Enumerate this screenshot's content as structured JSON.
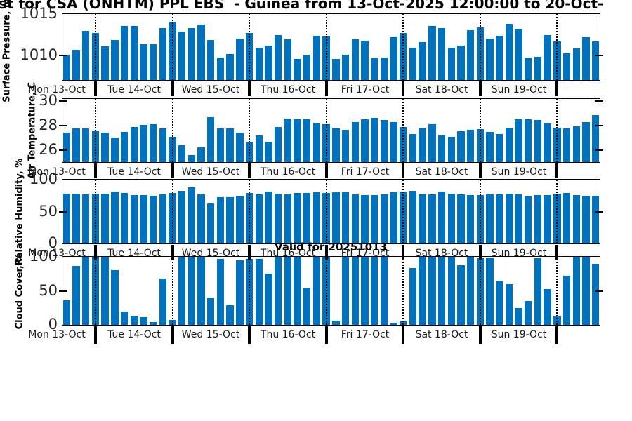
{
  "title": "st for CSA (ONHTM) PPL EBS  - Guinea from 13-Oct-2025 12:00:00 to 20-Oct-",
  "annotation": "Valid for 20251013",
  "bar_color": "#0072BD",
  "day_labels": [
    "Mon 13-Oct",
    "Tue 14-Oct",
    "Wed 15-Oct",
    "Thu 16-Oct",
    "Fri 17-Oct",
    "Sat 18-Oct",
    "Sun 19-Oct"
  ],
  "chart_data": [
    {
      "type": "bar",
      "ylabel": "Surface Pressure, mb",
      "yticks": [
        1015,
        1010
      ],
      "ylim": [
        1007.1,
        1015
      ],
      "x_tick_labels": [
        "Mon 13-Oct",
        "Tue 14-Oct",
        "Wed 15-Oct",
        "Thu 16-Oct",
        "Fri 17-Oct",
        "Sat 18-Oct",
        "Sun 19-Oct"
      ],
      "values": [
        1010.1,
        1010.7,
        1013.0,
        1012.7,
        1011.1,
        1011.9,
        1013.6,
        1013.6,
        1011.4,
        1011.4,
        1013.3,
        1014.1,
        1012.9,
        1013.3,
        1013.7,
        1011.9,
        1009.8,
        1010.2,
        1012.1,
        1012.7,
        1011.0,
        1011.2,
        1012.5,
        1012.0,
        1009.6,
        1010.1,
        1012.4,
        1012.3,
        1009.6,
        1010.1,
        1012.0,
        1011.8,
        1009.7,
        1009.8,
        1012.2,
        1012.7,
        1011.0,
        1011.6,
        1013.6,
        1013.3,
        1011.0,
        1011.2,
        1013.1,
        1013.4,
        1012.1,
        1012.4,
        1013.8,
        1013.2,
        1009.8,
        1009.9,
        1012.5,
        1011.7,
        1010.3,
        1010.9,
        1012.2,
        1011.7
      ]
    },
    {
      "type": "bar",
      "ylabel": "Air Temperature, C",
      "yticks": [
        30,
        28,
        26
      ],
      "ylim": [
        25,
        30.2
      ],
      "x_tick_labels": [
        "Mon 13-Oct",
        "Tue 14-Oct",
        "Wed 15-Oct",
        "Thu 16-Oct",
        "Fri 17-Oct",
        "Sat 18-Oct",
        "Sun 19-Oct"
      ],
      "values": [
        27.4,
        27.8,
        27.75,
        27.6,
        27.4,
        27.0,
        27.5,
        27.9,
        28.05,
        28.1,
        27.8,
        27.1,
        26.4,
        25.6,
        26.2,
        28.7,
        27.8,
        27.8,
        27.4,
        26.7,
        27.2,
        26.7,
        27.9,
        28.6,
        28.55,
        28.55,
        28.2,
        28.1,
        27.75,
        27.65,
        28.3,
        28.5,
        28.65,
        28.45,
        28.3,
        27.9,
        27.3,
        27.75,
        28.1,
        27.2,
        27.1,
        27.55,
        27.65,
        27.7,
        27.5,
        27.3,
        27.85,
        28.55,
        28.55,
        28.45,
        28.15,
        27.85,
        27.75,
        27.95,
        28.3,
        28.85
      ]
    },
    {
      "type": "bar",
      "ylabel": "Relative Humidity, %",
      "yticks": [
        100,
        50,
        0
      ],
      "ylim": [
        0,
        100
      ],
      "x_tick_labels": [
        "Mon 13-Oct",
        "Tue 14-Oct",
        "Wed 15-Oct",
        "Thu 16-Oct",
        "Fri 17-Oct",
        "Sat 18-Oct",
        "Sun 19-Oct"
      ],
      "values": [
        78,
        78,
        77,
        78,
        78,
        81,
        79,
        76,
        76,
        75,
        77,
        79,
        82,
        88,
        77,
        63,
        72,
        73,
        75,
        79,
        77,
        81,
        78,
        77,
        79,
        79,
        80,
        79,
        80,
        80,
        77,
        76,
        76,
        77,
        80,
        80,
        82,
        77,
        77,
        81,
        78,
        77,
        76,
        76,
        77,
        77,
        78,
        77,
        74,
        76,
        76,
        78,
        79,
        76,
        75,
        75
      ]
    },
    {
      "type": "bar",
      "ylabel": "Cloud Cover, %",
      "yticks": [
        100,
        50,
        0
      ],
      "ylim": [
        0,
        100
      ],
      "x_tick_labels": [
        "Mon 13-Oct",
        "Tue 14-Oct",
        "Wed 15-Oct",
        "Thu 16-Oct",
        "Fri 17-Oct",
        "Sat 18-Oct",
        "Sun 19-Oct"
      ],
      "values": [
        36,
        87,
        100,
        100,
        100,
        80,
        20,
        13,
        11,
        4,
        68,
        7,
        100,
        100,
        100,
        40,
        97,
        29,
        95,
        97,
        97,
        75,
        100,
        100,
        100,
        55,
        100,
        100,
        6,
        100,
        100,
        100,
        100,
        100,
        3,
        5,
        83,
        100,
        100,
        100,
        100,
        88,
        100,
        98,
        99,
        65,
        60,
        25,
        35,
        98,
        53,
        13,
        72,
        100,
        100,
        90
      ]
    }
  ]
}
